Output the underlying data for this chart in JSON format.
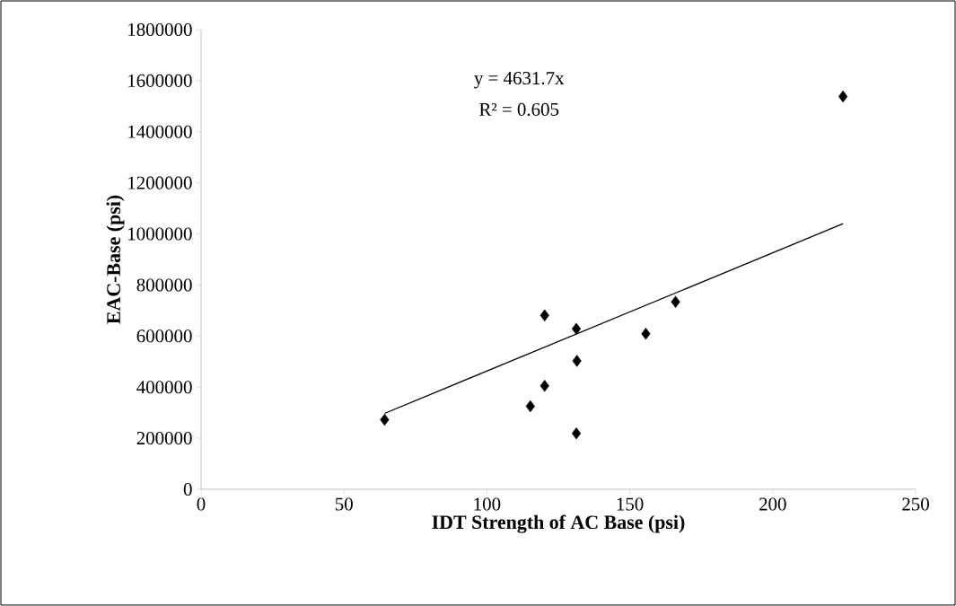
{
  "chart_data": {
    "type": "scatter",
    "xlabel": "IDT Strength of AC Base (psi)",
    "ylabel": "EAC-Base (psi)",
    "annotations": [
      "y = 4631.7x",
      "R² = 0.605"
    ],
    "xlim": [
      0,
      250
    ],
    "xticks": [
      0,
      50,
      100,
      150,
      200,
      250
    ],
    "ylim": [
      0,
      1800000
    ],
    "yticks": [
      0,
      200000,
      400000,
      600000,
      800000,
      1000000,
      1200000,
      1400000,
      1600000,
      1800000
    ],
    "grid": false,
    "marker": "diamond",
    "series": [
      {
        "color": "#000000",
        "x": [
          64.2,
          120.2,
          131.3,
          131.5,
          120.2,
          115.2,
          131.3,
          155.6,
          166.0,
          224.6
        ],
        "values": [
          272000,
          681000,
          628000,
          503000,
          405000,
          325000,
          219000,
          609000,
          734000,
          1538000
        ]
      },
      {
        "type": "line",
        "color": "#000000",
        "marker": "none",
        "line_style": "solid",
        "x": [
          64.2,
          224.6
        ],
        "values": [
          297000,
          1040000
        ]
      }
    ]
  }
}
